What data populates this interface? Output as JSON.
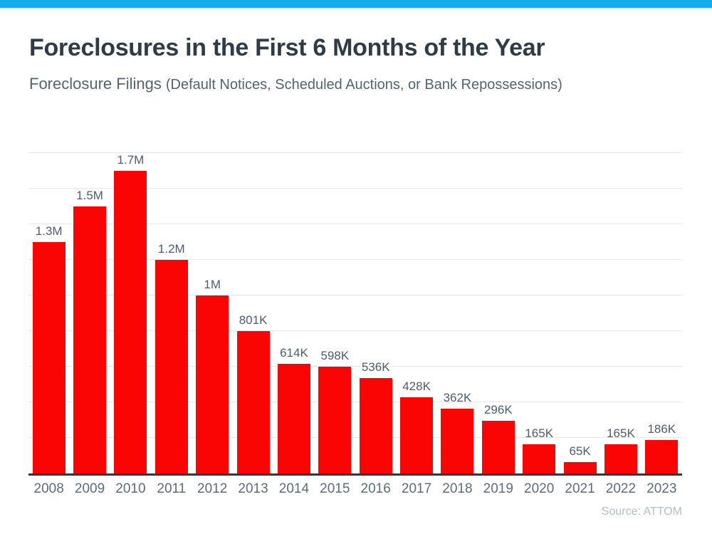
{
  "window": {
    "accent_bar_color": "#18aaea",
    "background_color": "#ffffff"
  },
  "header": {
    "title": "Foreclosures in the First 6 Months of the Year",
    "subtitle_main": "Foreclosure Filings",
    "subtitle_detail": "(Default Notices, Scheduled Auctions, or Bank Repossessions)"
  },
  "chart_data": {
    "type": "bar",
    "title": "Foreclosures in the First 6 Months of the Year",
    "subtitle": "Foreclosure Filings (Default Notices, Scheduled Auctions, or Bank Repossessions)",
    "categories": [
      "2008",
      "2009",
      "2010",
      "2011",
      "2012",
      "2013",
      "2014",
      "2015",
      "2016",
      "2017",
      "2018",
      "2019",
      "2020",
      "2021",
      "2022",
      "2023"
    ],
    "values": [
      1300000,
      1500000,
      1700000,
      1200000,
      1000000,
      801000,
      614000,
      598000,
      536000,
      428000,
      362000,
      296000,
      165000,
      65000,
      165000,
      186000
    ],
    "value_labels": [
      "1.3M",
      "1.5M",
      "1.7M",
      "1.2M",
      "1M",
      "801K",
      "614K",
      "598K",
      "536K",
      "428K",
      "362K",
      "296K",
      "165K",
      "65K",
      "165K",
      "186K"
    ],
    "xlabel": "",
    "ylabel": "",
    "ylim": [
      0,
      1800000
    ],
    "gridline_step": 200000,
    "grid": true,
    "legend": false,
    "bar_color": "#fb0404",
    "value_label_color": "#4d5c6e",
    "axis_label_color": "#5b6c7d",
    "gridline_color": "#e6e6eb",
    "axis_line_color": "#31373d",
    "source": "Source: ATTOM",
    "source_color": "#b1bec9"
  }
}
